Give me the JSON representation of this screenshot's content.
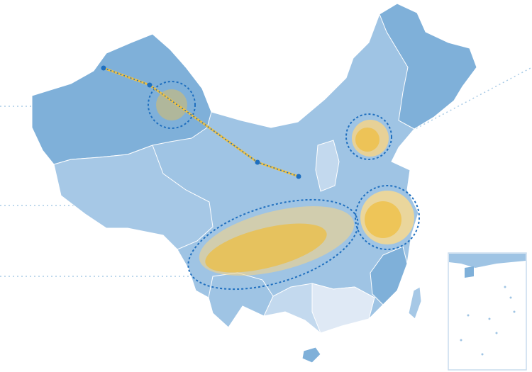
{
  "map": {
    "colors": {
      "province_dark": "#7fb0d9",
      "province_mid": "#9fc4e4",
      "province_light": "#c3d9ee",
      "province_pale": "#dfe9f5",
      "border": "#ffffff",
      "highlight_yellow": "#f5c242",
      "highlight_gray": "#b9b88f",
      "dashed_ring": "#1f6fbf",
      "guide_line": "#a9cbe6",
      "route_line": "#f0c040",
      "route_dot": "#1f6fbf",
      "inset_border": "#c9dcee"
    },
    "highlights": [
      {
        "name": "northwest-cluster",
        "style": "gray"
      },
      {
        "name": "north-china-cluster",
        "style": "yellow"
      },
      {
        "name": "yangtze-delta-cluster",
        "style": "yellow"
      },
      {
        "name": "southwest-belt",
        "style": "yellow"
      }
    ],
    "route": {
      "stops": 4
    },
    "inset": "south-china-sea"
  }
}
